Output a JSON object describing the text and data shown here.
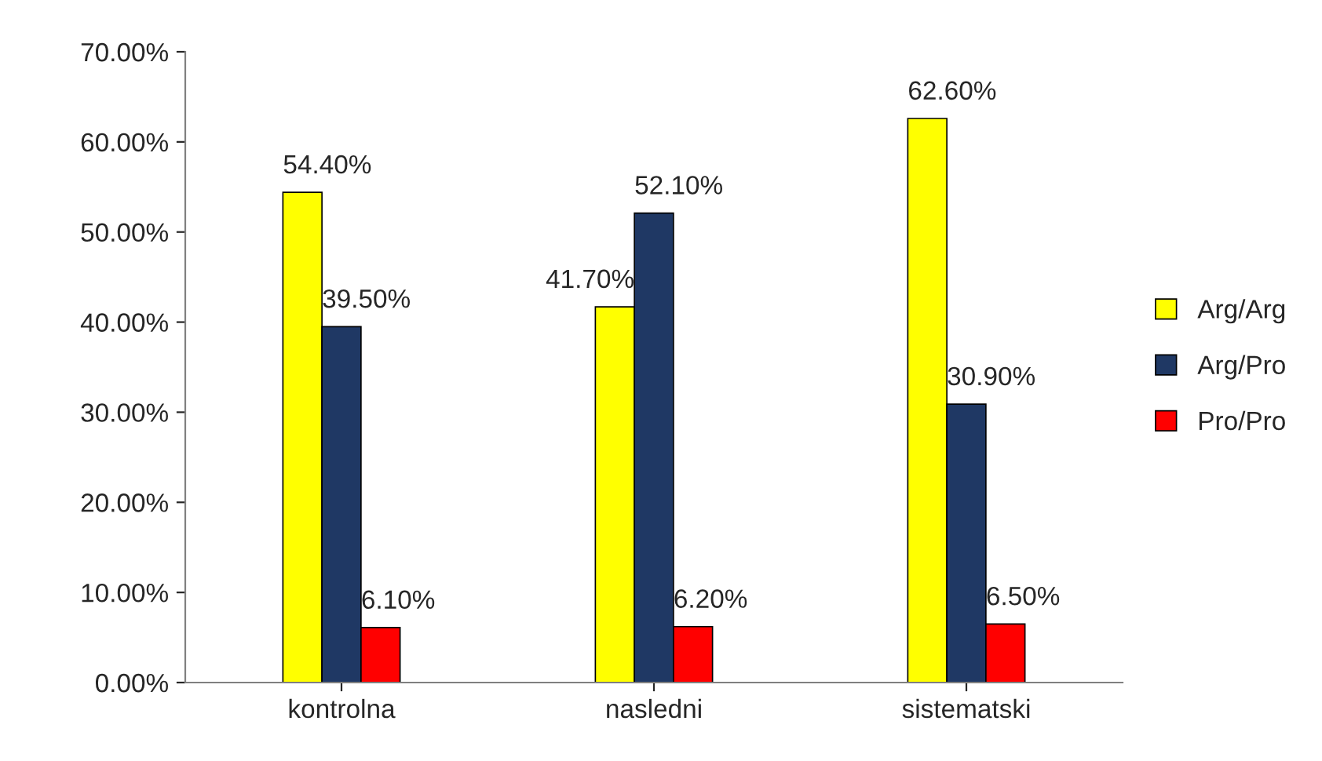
{
  "chart_data": {
    "type": "bar",
    "categories": [
      "kontrolna",
      "nasledni",
      "sistematski"
    ],
    "series": [
      {
        "name": "Arg/Arg",
        "color": "#ffff00",
        "values": [
          54.4,
          41.7,
          62.6
        ],
        "value_labels": [
          "54.40%",
          "41.70%",
          "62.60%"
        ]
      },
      {
        "name": "Arg/Pro",
        "color": "#1f3864",
        "values": [
          39.5,
          52.1,
          30.9
        ],
        "value_labels": [
          "39.50%",
          "52.10%",
          "30.90%"
        ]
      },
      {
        "name": "Pro/Pro",
        "color": "#ff0000",
        "values": [
          6.1,
          6.2,
          6.5
        ],
        "value_labels": [
          "6.10%",
          "6.20%",
          "6.50%"
        ]
      }
    ],
    "ylim": [
      0,
      70
    ],
    "yticks": [
      {
        "value": 0,
        "label": "0.00%"
      },
      {
        "value": 10,
        "label": "10.00%"
      },
      {
        "value": 20,
        "label": "20.00%"
      },
      {
        "value": 30,
        "label": "30.00%"
      },
      {
        "value": 40,
        "label": "40.00%"
      },
      {
        "value": 50,
        "label": "50.00%"
      },
      {
        "value": 60,
        "label": "60.00%"
      },
      {
        "value": 70,
        "label": "70.00%"
      }
    ],
    "grid": false,
    "legend": "right"
  }
}
